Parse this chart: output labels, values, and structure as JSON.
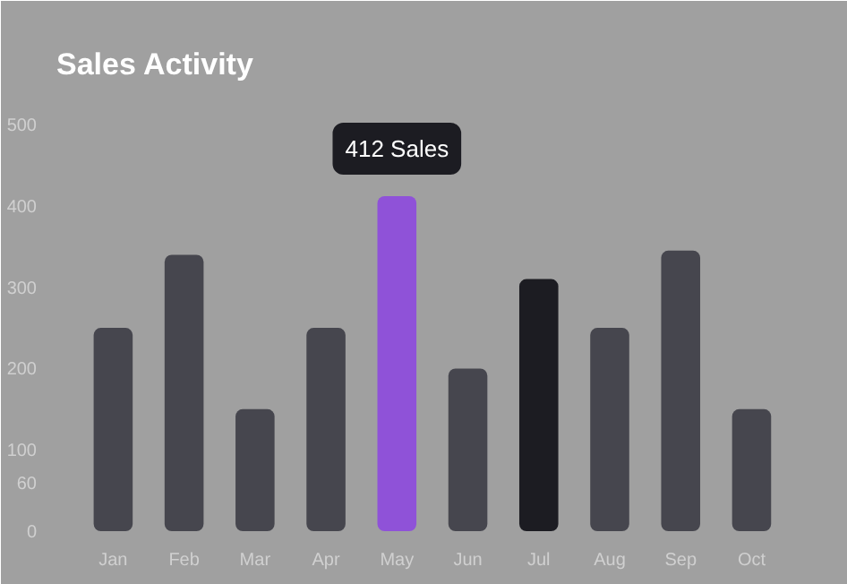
{
  "chart_data": {
    "type": "bar",
    "title": "Sales Activity",
    "categories": [
      "Jan",
      "Feb",
      "Mar",
      "Apr",
      "May",
      "Jun",
      "Jul",
      "Aug",
      "Sep",
      "Oct"
    ],
    "values": [
      250,
      340,
      150,
      250,
      412,
      200,
      310,
      250,
      345,
      150
    ],
    "colors": [
      "#46464e",
      "#46464e",
      "#46464e",
      "#46464e",
      "#8f52d8",
      "#46464e",
      "#1c1c22",
      "#46464e",
      "#46464e",
      "#46464e"
    ],
    "ylim": [
      0,
      520
    ],
    "yticks": [
      0,
      60,
      100,
      200,
      300,
      400,
      500
    ],
    "grid": false,
    "annotations": [
      {
        "text": "412 Sales",
        "x": "May",
        "y": 412
      }
    ]
  }
}
